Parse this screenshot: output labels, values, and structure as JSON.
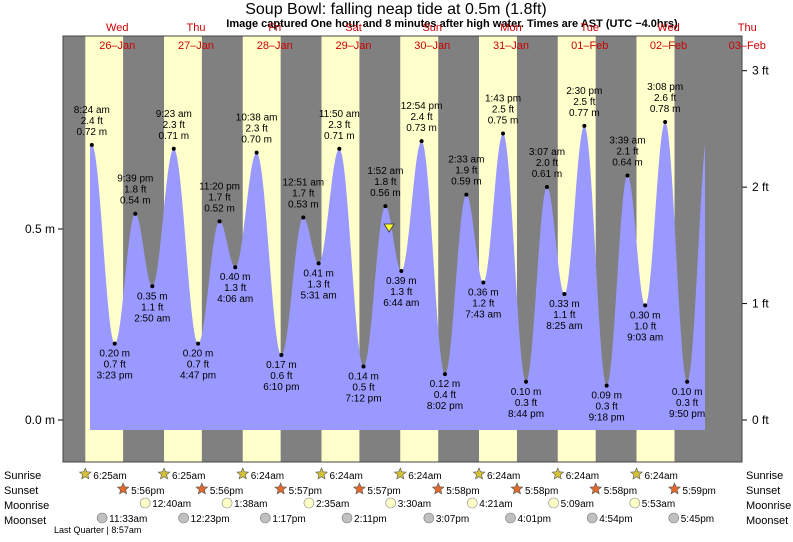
{
  "chart_data": {
    "type": "area",
    "title": "Soup Bowl: falling  neap tide at 0.5m (1.8ft)",
    "subtitle": "Image captured One hour and 8 minutes after high water. Times are AST (UTC −4.0hrs)",
    "days": [
      {
        "dow": "Wed",
        "date": "26–Jan"
      },
      {
        "dow": "Thu",
        "date": "27–Jan"
      },
      {
        "dow": "Fri",
        "date": "28–Jan"
      },
      {
        "dow": "Sat",
        "date": "29–Jan"
      },
      {
        "dow": "Sun",
        "date": "30–Jan"
      },
      {
        "dow": "Mon",
        "date": "31–Jan"
      },
      {
        "dow": "Tue",
        "date": "01–Feb"
      },
      {
        "dow": "Wed",
        "date": "02–Feb"
      },
      {
        "dow": "Thu",
        "date": "03–Feb"
      }
    ],
    "y_left": {
      "unit": "m",
      "ticks": [
        {
          "value": 0.0,
          "label": "0.0 m"
        },
        {
          "value": 0.5,
          "label": "0.5 m"
        }
      ]
    },
    "y_right": {
      "unit": "ft",
      "ticks": [
        {
          "value": 0,
          "label": "0 ft"
        },
        {
          "value": 1,
          "label": "1 ft"
        },
        {
          "value": 2,
          "label": "2 ft"
        },
        {
          "value": 3,
          "label": "3 ft"
        }
      ]
    },
    "ylim_m": [
      -0.075,
      0.975
    ],
    "current_level_m": 0.5,
    "extremes": [
      {
        "day": 0,
        "time": "8:24 am",
        "ft": "2.4 ft",
        "m": "0.72 m",
        "value": 0.72,
        "hour": 8.4,
        "type": "high"
      },
      {
        "day": 0,
        "time": "3:23 pm",
        "ft": "0.7 ft",
        "m": "0.20 m",
        "value": 0.2,
        "hour": 15.38,
        "type": "low"
      },
      {
        "day": 0,
        "time": "9:39 pm",
        "ft": "1.8 ft",
        "m": "0.54 m",
        "value": 0.54,
        "hour": 21.65,
        "type": "high"
      },
      {
        "day": 1,
        "time": "2:50 am",
        "ft": "1.1 ft",
        "m": "0.35 m",
        "value": 0.35,
        "hour": 2.83,
        "type": "low"
      },
      {
        "day": 1,
        "time": "9:23 am",
        "ft": "2.3 ft",
        "m": "0.71 m",
        "value": 0.71,
        "hour": 9.38,
        "type": "high"
      },
      {
        "day": 1,
        "time": "4:47 pm",
        "ft": "0.7 ft",
        "m": "0.20 m",
        "value": 0.2,
        "hour": 16.78,
        "type": "low"
      },
      {
        "day": 1,
        "time": "11:20 pm",
        "ft": "1.7 ft",
        "m": "0.52 m",
        "value": 0.52,
        "hour": 23.33,
        "type": "high"
      },
      {
        "day": 2,
        "time": "4:06 am",
        "ft": "1.3 ft",
        "m": "0.40 m",
        "value": 0.4,
        "hour": 4.1,
        "type": "low"
      },
      {
        "day": 2,
        "time": "10:38 am",
        "ft": "2.3 ft",
        "m": "0.70 m",
        "value": 0.7,
        "hour": 10.63,
        "type": "high"
      },
      {
        "day": 2,
        "time": "6:10 pm",
        "ft": "0.6 ft",
        "m": "0.17 m",
        "value": 0.17,
        "hour": 18.17,
        "type": "low"
      },
      {
        "day": 3,
        "time": "12:51 am",
        "ft": "1.7 ft",
        "m": "0.53 m",
        "value": 0.53,
        "hour": 0.85,
        "type": "high"
      },
      {
        "day": 3,
        "time": "5:31 am",
        "ft": "1.3 ft",
        "m": "0.41 m",
        "value": 0.41,
        "hour": 5.52,
        "type": "low"
      },
      {
        "day": 3,
        "time": "11:50 am",
        "ft": "2.3 ft",
        "m": "0.71 m",
        "value": 0.71,
        "hour": 11.83,
        "type": "high"
      },
      {
        "day": 3,
        "time": "7:12 pm",
        "ft": "0.5 ft",
        "m": "0.14 m",
        "value": 0.14,
        "hour": 19.2,
        "type": "low"
      },
      {
        "day": 4,
        "time": "1:52 am",
        "ft": "1.8 ft",
        "m": "0.56 m",
        "value": 0.56,
        "hour": 1.87,
        "type": "high"
      },
      {
        "day": 4,
        "time": "6:44 am",
        "ft": "1.3 ft",
        "m": "0.39 m",
        "value": 0.39,
        "hour": 6.73,
        "type": "low"
      },
      {
        "day": 4,
        "time": "12:54 pm",
        "ft": "2.4 ft",
        "m": "0.73 m",
        "value": 0.73,
        "hour": 12.9,
        "type": "high"
      },
      {
        "day": 4,
        "time": "8:02 pm",
        "ft": "0.4 ft",
        "m": "0.12 m",
        "value": 0.12,
        "hour": 20.03,
        "type": "low"
      },
      {
        "day": 5,
        "time": "2:33 am",
        "ft": "1.9 ft",
        "m": "0.59 m",
        "value": 0.59,
        "hour": 2.55,
        "type": "high"
      },
      {
        "day": 5,
        "time": "7:43 am",
        "ft": "1.2 ft",
        "m": "0.36 m",
        "value": 0.36,
        "hour": 7.72,
        "type": "low"
      },
      {
        "day": 5,
        "time": "1:43 pm",
        "ft": "2.5 ft",
        "m": "0.75 m",
        "value": 0.75,
        "hour": 13.72,
        "type": "high"
      },
      {
        "day": 5,
        "time": "8:44 pm",
        "ft": "0.3 ft",
        "m": "0.10 m",
        "value": 0.1,
        "hour": 20.73,
        "type": "low"
      },
      {
        "day": 6,
        "time": "3:07 am",
        "ft": "2.0 ft",
        "m": "0.61 m",
        "value": 0.61,
        "hour": 3.12,
        "type": "high"
      },
      {
        "day": 6,
        "time": "8:25 am",
        "ft": "1.1 ft",
        "m": "0.33 m",
        "value": 0.33,
        "hour": 8.42,
        "type": "low"
      },
      {
        "day": 6,
        "time": "2:30 pm",
        "ft": "2.5 ft",
        "m": "0.77 m",
        "value": 0.77,
        "hour": 14.5,
        "type": "high"
      },
      {
        "day": 6,
        "time": "9:18 pm",
        "ft": "0.3 ft",
        "m": "0.09 m",
        "value": 0.09,
        "hour": 21.3,
        "type": "low"
      },
      {
        "day": 7,
        "time": "3:39 am",
        "ft": "2.1 ft",
        "m": "0.64 m",
        "value": 0.64,
        "hour": 3.65,
        "type": "high"
      },
      {
        "day": 7,
        "time": "9:03 am",
        "ft": "1.0 ft",
        "m": "0.30 m",
        "value": 0.3,
        "hour": 9.05,
        "type": "low"
      },
      {
        "day": 7,
        "time": "3:08 pm",
        "ft": "2.6 ft",
        "m": "0.78 m",
        "value": 0.78,
        "hour": 15.13,
        "type": "high"
      },
      {
        "day": 7,
        "time": "9:50 pm",
        "ft": "0.3 ft",
        "m": "0.10 m",
        "value": 0.1,
        "hour": 21.83,
        "type": "low"
      }
    ],
    "sun": {
      "sunrise_label": "Sunrise",
      "sunset_label": "Sunset",
      "sunrise": [
        "6:25am",
        "6:25am",
        "6:24am",
        "6:24am",
        "6:24am",
        "6:24am",
        "6:24am",
        "6:24am"
      ],
      "sunset": [
        "5:56pm",
        "5:56pm",
        "5:57pm",
        "5:57pm",
        "5:58pm",
        "5:58pm",
        "5:58pm",
        "5:59pm"
      ]
    },
    "moon": {
      "moonrise_label": "Moonrise",
      "moonset_label": "Moonset",
      "moonrise": [
        "12:40am",
        "1:38am",
        "2:35am",
        "3:30am",
        "4:21am",
        "5:09am",
        "5:53am"
      ],
      "moonset": [
        "11:33am",
        "12:23pm",
        "1:17pm",
        "2:11pm",
        "3:07pm",
        "4:01pm",
        "4:54pm",
        "5:45pm"
      ],
      "phase_note": "Last Quarter | 8:57am"
    },
    "colors": {
      "night": "#808080",
      "day": "#ffffcc",
      "water": "#9999ff",
      "day_labels": "#cc0000",
      "sun_icon": "#d4c13a",
      "sunset_icon": "#e06a2a",
      "moonrise_icon": "#ffffc8",
      "moonset_icon": "#c0c0c0"
    }
  }
}
